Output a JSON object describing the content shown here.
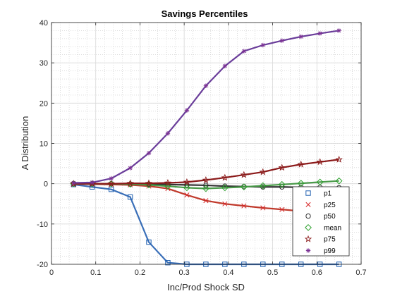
{
  "chart_data": {
    "type": "line",
    "title": "Savings Percentiles",
    "xlabel": "Inc/Prod Shock SD",
    "ylabel": "A Distribution",
    "xlim": [
      0,
      0.7
    ],
    "ylim": [
      -20,
      40
    ],
    "xticks": [
      0,
      0.1,
      0.2,
      0.3,
      0.4,
      0.5,
      0.6,
      0.7
    ],
    "yticks": [
      -20,
      -10,
      0,
      10,
      20,
      30,
      40
    ],
    "grid": true,
    "minor_grid": true,
    "legend_position": "bottom-right",
    "x": [
      0.05,
      0.092,
      0.135,
      0.178,
      0.22,
      0.263,
      0.306,
      0.349,
      0.392,
      0.435,
      0.478,
      0.521,
      0.564,
      0.607,
      0.65
    ],
    "series": [
      {
        "name": "p1",
        "marker": "square",
        "marker_color": "#1f5fb0",
        "line_color": "#3a6fb8",
        "values": [
          -0.2,
          -0.8,
          -1.4,
          -3.3,
          -14.5,
          -19.6,
          -20,
          -20,
          -20,
          -20,
          -20,
          -20,
          -20,
          -20,
          -20
        ]
      },
      {
        "name": "p25",
        "marker": "x",
        "marker_color": "#d62728",
        "line_color": "#c0392b",
        "values": [
          -0.1,
          -0.1,
          -0.2,
          -0.3,
          -0.6,
          -1.2,
          -2.8,
          -4.2,
          -5.0,
          -5.5,
          -6.0,
          -6.4,
          -6.8,
          -7.1,
          -7.4
        ]
      },
      {
        "name": "p50",
        "marker": "circle",
        "marker_color": "#333333",
        "line_color": "#333333",
        "values": [
          0,
          0,
          0,
          -0.1,
          -0.1,
          -0.2,
          -0.3,
          -0.4,
          -0.6,
          -0.7,
          -0.8,
          -0.8,
          -0.9,
          -0.9,
          -1.0
        ]
      },
      {
        "name": "mean",
        "marker": "diamond",
        "marker_color": "#2ca02c",
        "line_color": "#4a9a4a",
        "values": [
          0,
          0,
          0,
          -0.1,
          -0.3,
          -0.6,
          -1.0,
          -1.2,
          -1.0,
          -0.8,
          -0.5,
          -0.2,
          0.1,
          0.4,
          0.7
        ]
      },
      {
        "name": "p75",
        "marker": "pentagram",
        "marker_color": "#8b1a1a",
        "line_color": "#8b1a1a",
        "values": [
          0,
          0,
          0,
          0.1,
          0.1,
          0.2,
          0.4,
          0.9,
          1.5,
          2.2,
          2.9,
          4.0,
          4.8,
          5.4,
          6.0
        ]
      },
      {
        "name": "p99",
        "marker": "asterisk",
        "marker_color": "#7b3294",
        "line_color": "#6a3d9a",
        "values": [
          0.2,
          0.3,
          1.3,
          3.9,
          7.6,
          12.5,
          18.2,
          24.3,
          29.2,
          32.9,
          34.4,
          35.5,
          36.5,
          37.3,
          38.0
        ]
      }
    ]
  }
}
